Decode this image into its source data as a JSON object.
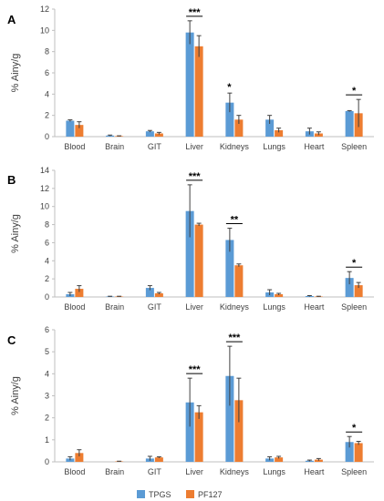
{
  "chart_data": [
    {
      "type": "bar",
      "panel": "A",
      "ylabel": "% Ainy/g",
      "ylim": [
        0,
        12
      ],
      "yticks": [
        0,
        2,
        4,
        6,
        8,
        10,
        12
      ],
      "categories": [
        "Blood",
        "Brain",
        "GIT",
        "Liver",
        "Kidneys",
        "Lungs",
        "Heart",
        "Spleen"
      ],
      "series": [
        {
          "name": "TPGS",
          "values": [
            1.5,
            0.1,
            0.5,
            9.8,
            3.2,
            1.6,
            0.5,
            2.4
          ],
          "errors": [
            0.08,
            0.05,
            0.08,
            1.1,
            0.9,
            0.4,
            0.3,
            0.05
          ]
        },
        {
          "name": "PF127",
          "values": [
            1.1,
            0.05,
            0.3,
            8.5,
            1.6,
            0.6,
            0.3,
            2.2
          ],
          "errors": [
            0.3,
            0.03,
            0.1,
            1.0,
            0.4,
            0.2,
            0.15,
            1.3
          ]
        }
      ],
      "significance": [
        {
          "category": "Liver",
          "label": "***",
          "bracket": true
        },
        {
          "category": "Kidneys",
          "label": "*",
          "bracket": false
        },
        {
          "category": "Spleen",
          "label": "*",
          "bracket": true
        }
      ]
    },
    {
      "type": "bar",
      "panel": "B",
      "ylabel": "% Ainy/g",
      "ylim": [
        0,
        14
      ],
      "yticks": [
        0,
        2,
        4,
        6,
        8,
        10,
        12,
        14
      ],
      "categories": [
        "Blood",
        "Brain",
        "GIT",
        "Liver",
        "Kidneys",
        "Lungs",
        "Heart",
        "Spleen"
      ],
      "series": [
        {
          "name": "TPGS",
          "values": [
            0.3,
            0.05,
            1.0,
            9.5,
            6.3,
            0.5,
            0.1,
            2.1
          ],
          "errors": [
            0.2,
            0.03,
            0.25,
            2.9,
            1.3,
            0.3,
            0.05,
            0.7
          ]
        },
        {
          "name": "PF127",
          "values": [
            0.9,
            0.05,
            0.4,
            8.0,
            3.5,
            0.3,
            0.05,
            1.3
          ],
          "errors": [
            0.35,
            0.03,
            0.1,
            0.15,
            0.15,
            0.1,
            0.03,
            0.3
          ]
        }
      ],
      "significance": [
        {
          "category": "Liver",
          "label": "***",
          "bracket": true
        },
        {
          "category": "Kidneys",
          "label": "**",
          "bracket": true
        },
        {
          "category": "Spleen",
          "label": "*",
          "bracket": true
        }
      ]
    },
    {
      "type": "bar",
      "panel": "C",
      "ylabel": "% Ainy/g",
      "ylim": [
        0,
        6
      ],
      "yticks": [
        0,
        1,
        2,
        3,
        4,
        5,
        6
      ],
      "categories": [
        "Blood",
        "Brain",
        "GIT",
        "Liver",
        "Kidneys",
        "Lungs",
        "Heart",
        "Spleen"
      ],
      "series": [
        {
          "name": "TPGS",
          "values": [
            0.15,
            0.0,
            0.15,
            2.7,
            3.9,
            0.15,
            0.05,
            0.9
          ],
          "errors": [
            0.08,
            0.0,
            0.1,
            1.1,
            1.35,
            0.08,
            0.03,
            0.25
          ]
        },
        {
          "name": "PF127",
          "values": [
            0.4,
            0.02,
            0.2,
            2.25,
            2.8,
            0.2,
            0.1,
            0.85
          ],
          "errors": [
            0.15,
            0.01,
            0.03,
            0.3,
            1.0,
            0.05,
            0.05,
            0.08
          ]
        }
      ],
      "significance": [
        {
          "category": "Liver",
          "label": "***",
          "bracket": true
        },
        {
          "category": "Kidneys",
          "label": "***",
          "bracket": true
        },
        {
          "category": "Spleen",
          "label": "*",
          "bracket": true
        }
      ]
    }
  ],
  "legend": {
    "placement": "bottom-center",
    "items": [
      {
        "name": "TPGS",
        "color": "#5b9bd5"
      },
      {
        "name": "PF127",
        "color": "#ed7d31"
      }
    ]
  },
  "colors": {
    "TPGS": "#5b9bd5",
    "PF127": "#ed7d31",
    "axis": "#bfbfbf",
    "text": "#404040"
  }
}
